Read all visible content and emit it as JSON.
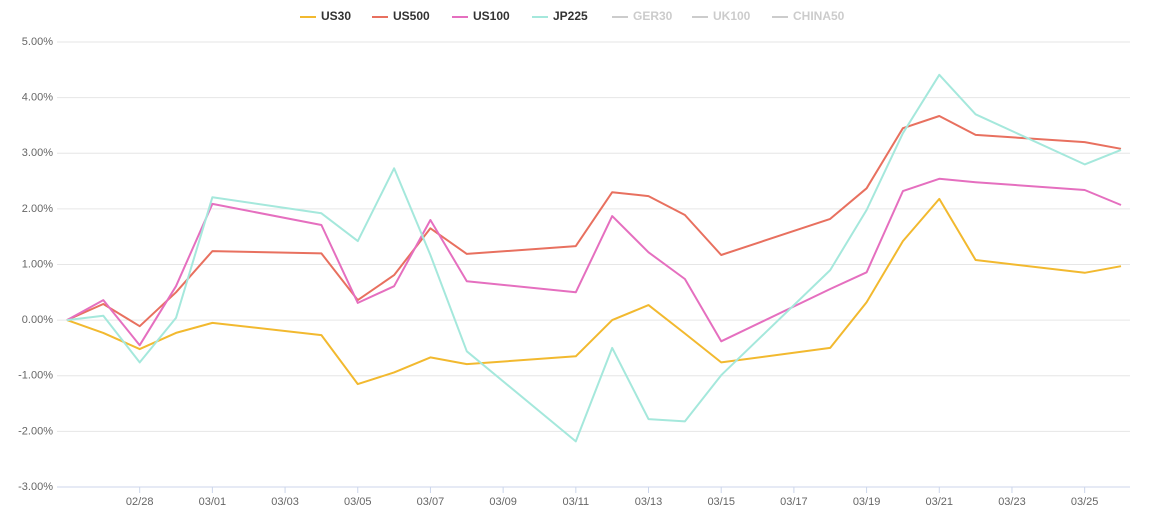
{
  "chart_data": {
    "type": "line",
    "x": [
      "02/26",
      "02/27",
      "02/28",
      "02/29",
      "03/01",
      "03/04",
      "03/05",
      "03/06",
      "03/07",
      "03/08",
      "03/11",
      "03/12",
      "03/13",
      "03/14",
      "03/15",
      "03/18",
      "03/19",
      "03/20",
      "03/21",
      "03/22",
      "03/25",
      "03/26"
    ],
    "xlim": [
      "02/26",
      "03/26"
    ],
    "xticks": [
      "02/28",
      "03/01",
      "03/03",
      "03/05",
      "03/07",
      "03/09",
      "03/11",
      "03/13",
      "03/15",
      "03/17",
      "03/19",
      "03/21",
      "03/23",
      "03/25"
    ],
    "ylim": [
      -3,
      5
    ],
    "yticks": [
      {
        "value": -3,
        "label": "-3.00%"
      },
      {
        "value": -2,
        "label": "-2.00%"
      },
      {
        "value": -1,
        "label": "-1.00%"
      },
      {
        "value": 0,
        "label": "0.00%"
      },
      {
        "value": 1,
        "label": "1.00%"
      },
      {
        "value": 2,
        "label": "2.00%"
      },
      {
        "value": 3,
        "label": "3.00%"
      },
      {
        "value": 4,
        "label": "4.00%"
      },
      {
        "value": 5,
        "label": "5.00%"
      }
    ],
    "grid": true,
    "legend_position": "top",
    "series": [
      {
        "name": "US30",
        "color": "#f2b92f",
        "values": [
          0,
          -0.23,
          -0.52,
          -0.23,
          -0.05,
          -0.27,
          -1.15,
          -0.94,
          -0.67,
          -0.79,
          -0.65,
          0.0,
          0.27,
          -0.24,
          -0.76,
          -0.5,
          0.32,
          1.42,
          2.18,
          1.08,
          0.85,
          0.97
        ]
      },
      {
        "name": "US500",
        "color": "#e8705f",
        "values": [
          0,
          0.29,
          -0.11,
          0.5,
          1.24,
          1.2,
          0.36,
          0.81,
          1.65,
          1.19,
          1.33,
          2.3,
          2.23,
          1.89,
          1.17,
          1.82,
          2.37,
          3.45,
          3.67,
          3.33,
          3.2,
          3.08
        ]
      },
      {
        "name": "US100",
        "color": "#e56fbf",
        "values": [
          0,
          0.36,
          -0.45,
          0.61,
          2.09,
          1.71,
          0.31,
          0.61,
          1.8,
          0.7,
          0.5,
          1.87,
          1.22,
          0.74,
          -0.38,
          0.56,
          0.86,
          2.32,
          2.54,
          2.48,
          2.34,
          2.07
        ]
      },
      {
        "name": "JP225",
        "color": "#a5e8dc",
        "values": [
          0,
          0.08,
          -0.76,
          0.04,
          2.21,
          1.92,
          1.42,
          2.73,
          1.17,
          -0.56,
          -2.18,
          -0.5,
          -1.78,
          -1.82,
          -0.99,
          0.9,
          1.98,
          3.36,
          4.41,
          3.7,
          2.8,
          3.06
        ]
      }
    ],
    "legend": {
      "hidden": [
        "GER30",
        "UK100",
        "CHINA50"
      ],
      "hidden_color": "#cccccc"
    }
  }
}
